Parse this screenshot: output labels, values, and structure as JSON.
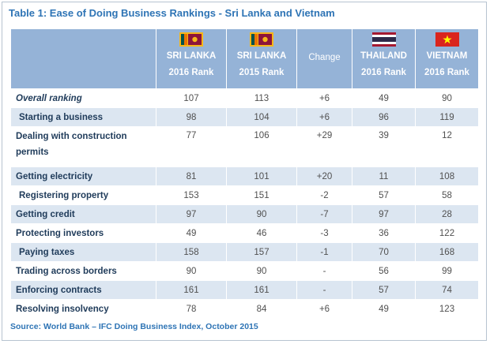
{
  "caption": "Table 1: Ease of Doing Business Rankings - Sri Lanka and Vietnam",
  "columns": [
    {
      "line1": "SRI LANKA",
      "line2": "2016 Rank",
      "flag": "sri-lanka-flag"
    },
    {
      "line1": "SRI LANKA",
      "line2": "2015 Rank",
      "flag": "sri-lanka-flag"
    },
    {
      "line1": "Change",
      "line2": "",
      "flag": ""
    },
    {
      "line1": "THAILAND",
      "line2": "2016 Rank",
      "flag": "thailand-flag"
    },
    {
      "line1": "VIETNAM",
      "line2": "2016 Rank",
      "flag": "vietnam-flag"
    }
  ],
  "rows": [
    {
      "name": "Overall ranking",
      "values": [
        "107",
        "113",
        "+6",
        "49",
        "90"
      ]
    },
    {
      "name": "Starting a business",
      "values": [
        "98",
        "104",
        "+6",
        "96",
        "119"
      ]
    },
    {
      "name": "Dealing with construction permits",
      "values": [
        "77",
        "106",
        "+29",
        "39",
        "12"
      ]
    },
    {
      "name": "Getting electricity",
      "values": [
        "81",
        "101",
        "+20",
        "11",
        "108"
      ]
    },
    {
      "name": "Registering property",
      "values": [
        "153",
        "151",
        "-2",
        "57",
        "58"
      ]
    },
    {
      "name": "Getting credit",
      "values": [
        "97",
        "90",
        "-7",
        "97",
        "28"
      ]
    },
    {
      "name": "Protecting investors",
      "values": [
        "49",
        "46",
        "-3",
        "36",
        "122"
      ]
    },
    {
      "name": "Paying taxes",
      "values": [
        "158",
        "157",
        "-1",
        "70",
        "168"
      ]
    },
    {
      "name": "Trading across borders",
      "values": [
        "90",
        "90",
        "-",
        "56",
        "99"
      ]
    },
    {
      "name": "Enforcing contracts",
      "values": [
        "161",
        "161",
        "-",
        "57",
        "74"
      ]
    },
    {
      "name": "Resolving insolvency",
      "values": [
        "78",
        "84",
        "+6",
        "49",
        "123"
      ]
    }
  ],
  "source": "Source: World Bank – IFC Doing Business Index, October 2015",
  "colors": {
    "caption": "#2e74b5",
    "header_bg": "#95b3d7",
    "band": "#dce6f1"
  }
}
